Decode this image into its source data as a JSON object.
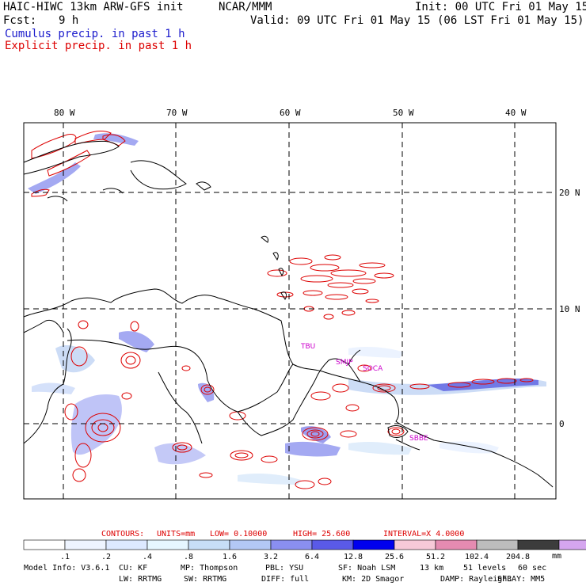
{
  "header": {
    "title": "HAIC-HIWC 13km ARW-GFS init",
    "org": "NCAR/MMM",
    "init": "Init: 00 UTC Fri 01 May 15",
    "fcst_label": "Fcst:",
    "fcst_value": "9 h",
    "valid": "Valid: 09 UTC Fri 01 May 15 (06 LST Fri 01 May 15)",
    "legend_cumulus": "Cumulus precip. in past 1 h",
    "legend_explicit": "Explicit precip. in past 1 h"
  },
  "colors": {
    "cumulus": "#3333dd",
    "explicit": "#dd0000",
    "station": "#cc00cc"
  },
  "map": {
    "lon_labels": [
      "80 W",
      "70 W",
      "60 W",
      "50 W",
      "40 W"
    ],
    "lat_labels": [
      "20 N",
      "10 N",
      "0"
    ],
    "stations": [
      "TBU",
      "SMJP",
      "SOCA",
      "SBBE"
    ]
  },
  "contours": {
    "label": "CONTOURS:",
    "units": "UNITS=mm",
    "low": "LOW= 0.10000",
    "high": "HIGH= 25.600",
    "interval": "INTERVAL=X 4.0000"
  },
  "colorbar": {
    "ticks": [
      ".1",
      ".2",
      ".4",
      ".8",
      "1.6",
      "3.2",
      "6.4",
      "12.8",
      "25.6",
      "51.2",
      "102.4",
      "204.8"
    ],
    "units": "mm",
    "colors": [
      "#ffffff",
      "#eef4ff",
      "#dde9ff",
      "#e6f7ff",
      "#c7def7",
      "#b3c8f5",
      "#8a8ff0",
      "#5a5ae8",
      "#0000ee",
      "#f7c9d8",
      "#e58bb1",
      "#bdbdbd",
      "#3c3c3c",
      "#d5a6ef"
    ]
  },
  "model_info": {
    "line1": [
      "Model Info: V3.6.1",
      "CU: KF",
      "MP: Thompson",
      "PBL: YSU",
      "SF: Noah LSM",
      "13 km",
      "51 levels",
      "60 sec"
    ],
    "line2": [
      "LW: RRTMG",
      "SW: RRTMG",
      "DIFF: full",
      "KM: 2D Smagor",
      "DAMP: Rayleigh3",
      "SFLAY: MM5"
    ]
  }
}
